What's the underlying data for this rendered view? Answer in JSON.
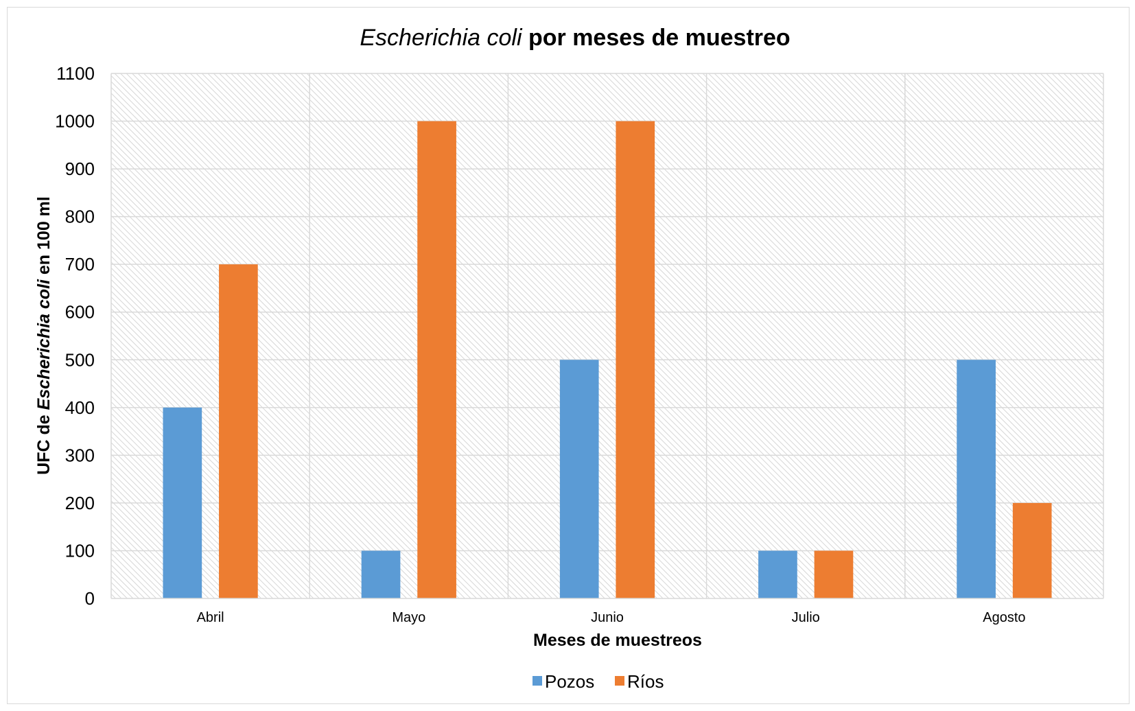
{
  "chart_data": {
    "type": "bar",
    "title_part_italic": "Escherichia coli",
    "title_part_bold": " por meses de muestreo",
    "xlabel": "Meses de muestreos",
    "ylabel_prefix": "UFC de ",
    "ylabel_italic": "Escherichia coli",
    "ylabel_suffix": " en 100 ml",
    "categories": [
      "Abril",
      "Mayo",
      "Junio",
      "Julio",
      "Agosto"
    ],
    "series": [
      {
        "name": "Pozos",
        "color": "#5b9bd5",
        "values": [
          400,
          100,
          500,
          100,
          500
        ]
      },
      {
        "name": "Ríos",
        "color": "#ed7d31",
        "values": [
          700,
          1000,
          1000,
          100,
          200
        ]
      }
    ],
    "ylim": [
      0,
      1100
    ],
    "yticks": [
      0,
      100,
      200,
      300,
      400,
      500,
      600,
      700,
      800,
      900,
      1000,
      1100
    ],
    "grid": true,
    "legend_position": "bottom"
  }
}
